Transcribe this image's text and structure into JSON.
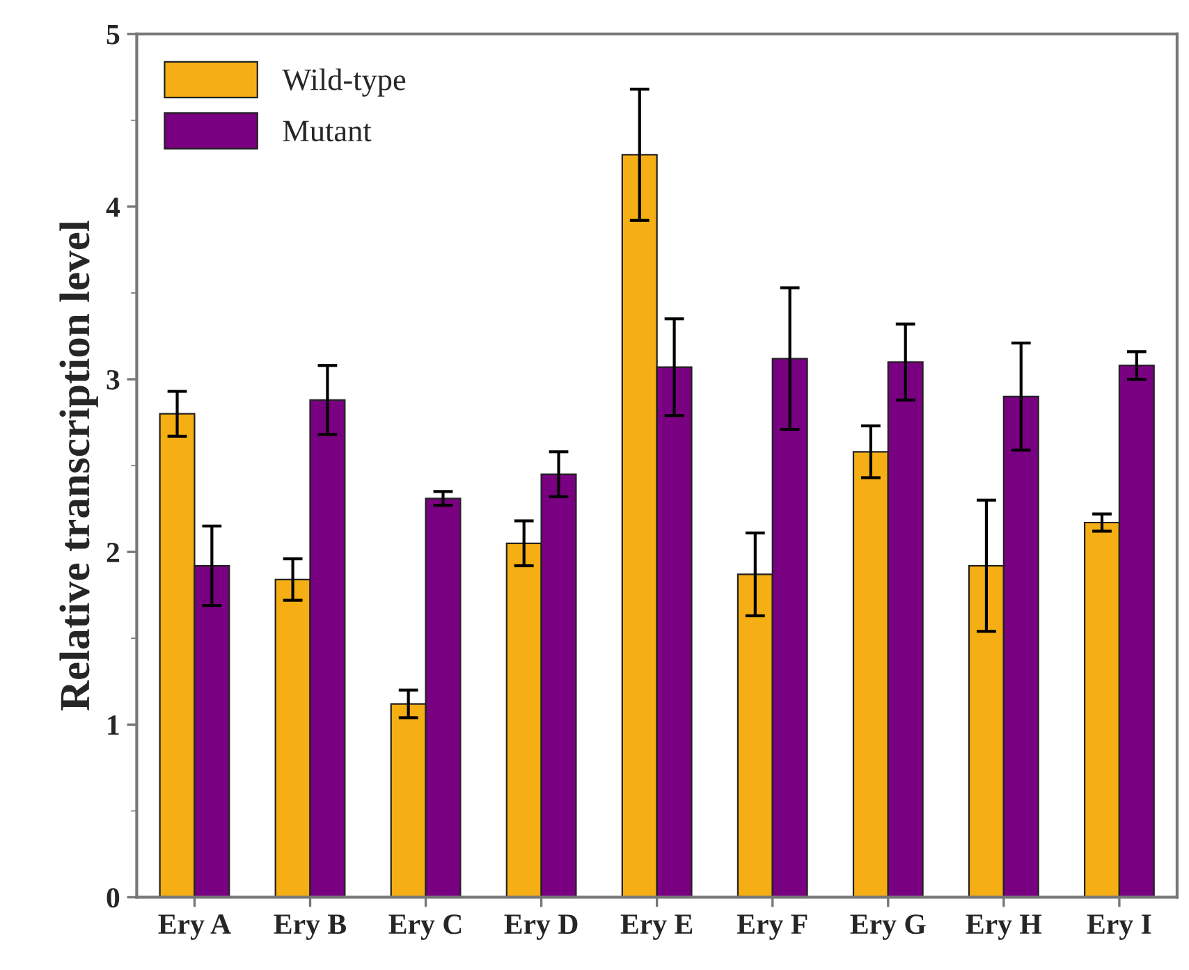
{
  "chart_data": {
    "type": "bar",
    "ylabel": "Relative transcription level",
    "categories": [
      "Ery A",
      "Ery B",
      "Ery C",
      "Ery D",
      "Ery E",
      "Ery F",
      "Ery G",
      "Ery H",
      "Ery I"
    ],
    "series": [
      {
        "name": "Wild-type",
        "color": "#f5ae14",
        "values": [
          2.8,
          1.84,
          1.12,
          2.05,
          4.3,
          1.87,
          2.58,
          1.92,
          2.17
        ],
        "errors": [
          0.13,
          0.12,
          0.08,
          0.13,
          0.38,
          0.24,
          0.15,
          0.38,
          0.05
        ]
      },
      {
        "name": "Mutant",
        "color": "#7a0082",
        "values": [
          1.92,
          2.88,
          2.31,
          2.45,
          3.07,
          3.12,
          3.1,
          2.9,
          3.08
        ],
        "errors": [
          0.23,
          0.2,
          0.04,
          0.13,
          0.28,
          0.41,
          0.22,
          0.31,
          0.08
        ]
      }
    ],
    "ylim": [
      0,
      5
    ],
    "yticks": [
      0,
      1,
      2,
      3,
      4,
      5
    ],
    "grid": false,
    "legend": "top left"
  }
}
